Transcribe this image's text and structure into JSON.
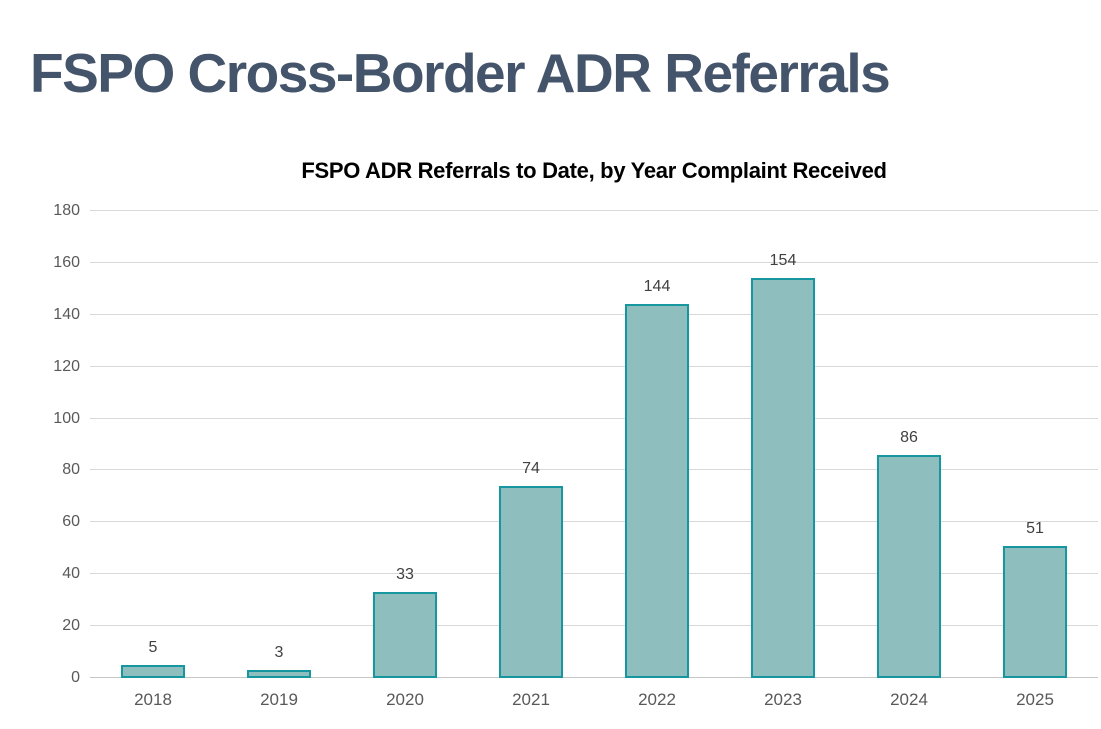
{
  "page": {
    "title": "FSPO Cross-Border ADR Referrals"
  },
  "chart_data": {
    "type": "bar",
    "title": "FSPO ADR Referrals to Date, by Year Complaint Received",
    "categories": [
      "2018",
      "2019",
      "2020",
      "2021",
      "2022",
      "2023",
      "2024",
      "2025"
    ],
    "values": [
      5,
      3,
      33,
      74,
      144,
      154,
      86,
      51
    ],
    "xlabel": "",
    "ylabel": "",
    "ylim": [
      0,
      180
    ],
    "ytick_step": 20,
    "yticks": [
      0,
      20,
      40,
      60,
      80,
      100,
      120,
      140,
      160,
      180
    ],
    "grid": true,
    "legend": "none",
    "data_labels_shown": true
  },
  "colors": {
    "page_title": "#44546A",
    "chart_title": "#000000",
    "bar_fill": "#8FBEBF",
    "bar_border": "#1697A0",
    "gridline": "#D9D9D9",
    "axis_baseline": "#C6C6C6",
    "axis_text": "#595959",
    "data_label_text": "#404040"
  }
}
